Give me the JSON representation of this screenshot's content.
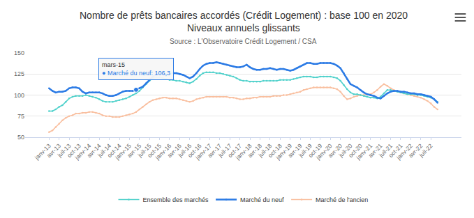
{
  "chart_data": {
    "type": "line",
    "title": "Nombre de prêts bancaires accordés (Crédit Logement) : base 100 en 2020",
    "subtitle": "Niveaux annuels glissants",
    "source": "Source : L'Observatoire Crédit Logement / CSA",
    "categories": [
      "janv-13",
      null,
      null,
      "avr-13",
      null,
      null,
      "juil-13",
      null,
      null,
      "oct-13",
      null,
      null,
      "janv-14",
      null,
      null,
      "avr-14",
      null,
      null,
      "juil-14",
      null,
      null,
      "oct-14",
      null,
      null,
      "janv-15",
      null,
      null,
      "avr-15",
      null,
      null,
      "juil-15",
      null,
      null,
      "oct-15",
      null,
      null,
      "janv-16",
      null,
      null,
      "avr-16",
      null,
      null,
      "juil-16",
      null,
      null,
      "oct-16",
      null,
      null,
      "janv-17",
      null,
      null,
      "avr-17",
      null,
      null,
      "juil-17",
      null,
      null,
      "oct-17",
      null,
      null,
      "janv-18",
      null,
      null,
      "avr-18",
      null,
      null,
      "juil-18",
      null,
      null,
      "oct-18",
      null,
      null,
      "janv-19",
      null,
      null,
      "avr-19",
      null,
      null,
      "juil-19",
      null,
      null,
      "oct-19",
      null,
      null,
      "janv-20",
      null,
      null,
      "avr-20",
      null,
      null,
      "juil-20",
      null,
      null,
      "oct-20",
      null,
      null,
      "janv-21",
      null,
      null,
      "avr-21",
      null,
      null,
      "juil-21",
      null,
      null,
      "oct-21",
      null,
      null,
      "janv-22",
      null,
      null,
      "avr-22",
      null,
      null,
      "juil-22",
      null,
      null
    ],
    "series": [
      {
        "name": "Ensemble des marchés",
        "color": "#4fd1cb",
        "marker": "circle",
        "values": [
          81,
          81,
          83,
          86,
          88,
          92,
          96,
          98,
          99,
          99,
          99,
          100,
          99,
          98,
          97,
          95,
          93,
          92,
          92,
          92,
          93,
          94,
          95,
          96,
          98,
          100,
          102,
          105,
          109,
          113,
          117,
          120,
          121,
          121,
          120,
          119,
          118,
          118,
          117,
          117,
          116,
          115,
          114,
          116,
          119,
          123,
          126,
          127,
          127,
          127,
          126,
          126,
          125,
          124,
          123,
          122,
          120,
          118,
          117,
          117,
          116,
          116,
          116,
          116,
          117,
          117,
          117,
          117,
          117,
          118,
          118,
          118,
          118,
          119,
          120,
          121,
          122,
          122,
          122,
          121,
          121,
          122,
          122,
          122,
          122,
          121,
          120,
          117,
          112,
          107,
          103,
          101,
          101,
          100,
          99,
          98,
          97,
          97,
          96,
          98,
          102,
          106,
          106,
          105,
          104,
          103,
          102,
          101,
          101,
          101,
          100,
          100,
          99,
          98,
          97,
          95,
          92
        ]
      },
      {
        "name": "Marché du neuf",
        "color": "#2c7be5",
        "marker": "circle",
        "values": [
          108,
          105,
          103,
          104,
          104,
          105,
          108,
          109,
          109,
          108,
          104,
          102,
          103,
          103,
          103,
          103,
          102,
          100,
          99,
          99,
          100,
          102,
          104,
          105,
          105,
          105,
          106.3,
          108,
          110,
          114,
          118,
          122,
          125,
          126,
          125,
          124,
          125,
          126,
          126,
          125,
          124,
          122,
          120,
          122,
          126,
          131,
          135,
          137,
          138,
          138,
          139,
          138,
          137,
          136,
          135,
          134,
          133,
          133,
          134,
          136,
          133,
          131,
          130,
          130,
          131,
          131,
          132,
          131,
          130,
          131,
          131,
          130,
          129,
          130,
          132,
          134,
          136,
          138,
          138,
          137,
          137,
          138,
          138,
          138,
          138,
          137,
          135,
          132,
          126,
          119,
          113,
          111,
          109,
          106,
          103,
          101,
          100,
          99,
          97,
          96,
          99,
          102,
          104,
          105,
          105,
          104,
          104,
          103,
          102,
          102,
          101,
          101,
          100,
          99,
          98,
          95,
          91
        ]
      },
      {
        "name": "Marché de l'ancien",
        "color": "#f9bf9f",
        "marker": "circle",
        "values": [
          56,
          58,
          62,
          66,
          70,
          73,
          75,
          76,
          78,
          78,
          79,
          79,
          80,
          80,
          79,
          78,
          76,
          75,
          75,
          74,
          74,
          74,
          75,
          76,
          77,
          78,
          80,
          83,
          86,
          89,
          92,
          94,
          95,
          96,
          97,
          97,
          96,
          96,
          96,
          95,
          94,
          93,
          92,
          93,
          95,
          96,
          97,
          98,
          98,
          98,
          98,
          98,
          98,
          98,
          97,
          97,
          96,
          95,
          95,
          96,
          96,
          97,
          97,
          98,
          98,
          98,
          98,
          99,
          99,
          99,
          100,
          100,
          101,
          102,
          103,
          104,
          106,
          107,
          108,
          109,
          109,
          109,
          109,
          109,
          109,
          108,
          107,
          104,
          99,
          95,
          96,
          98,
          99,
          100,
          100,
          101,
          101,
          103,
          106,
          110,
          113,
          111,
          108,
          106,
          104,
          103,
          102,
          101,
          100,
          99,
          98,
          97,
          95,
          93,
          90,
          86,
          83
        ]
      }
    ],
    "ylim": [
      50,
      150
    ],
    "yticks": [
      50,
      75,
      100,
      125,
      150
    ],
    "grid": true,
    "legend": "bottom",
    "annotations": [
      {
        "title": "mars-15",
        "text": "● Marché du neuf: 106,3",
        "series": "Marché du neuf",
        "index": 26,
        "value": 106.3
      }
    ]
  }
}
